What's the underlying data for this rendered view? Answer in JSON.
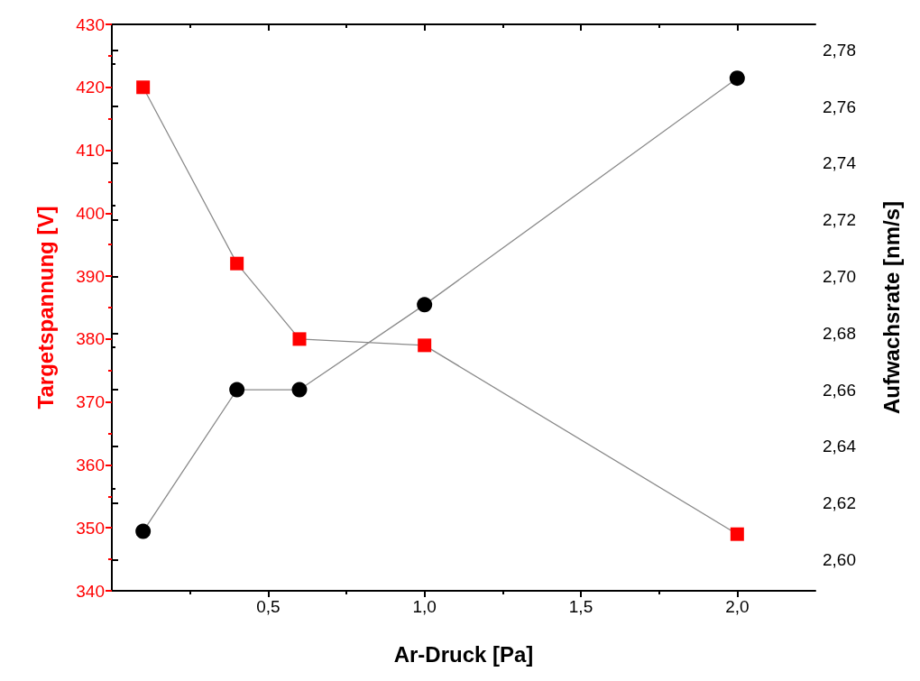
{
  "chart_data": {
    "type": "line",
    "xlabel": "Ar-Druck [Pa]",
    "ylabel": "Targetspannung [V]",
    "y2label": "Aufwachsrate [nm/s]",
    "x": [
      0.1,
      0.4,
      0.6,
      1.0,
      2.0
    ],
    "series": [
      {
        "color": "#ff0000",
        "marker": "square",
        "values": [
          420,
          392,
          380,
          379,
          349
        ]
      },
      {
        "color": "#000000",
        "marker": "circle",
        "axis": "y2",
        "values": [
          2.61,
          2.66,
          2.66,
          2.69,
          2.77
        ]
      }
    ],
    "xlim": [
      0,
      2.25
    ],
    "xticks": [
      {
        "value": 0.5,
        "label": "0,5"
      },
      {
        "value": 1.0,
        "label": "1,0"
      },
      {
        "value": 1.5,
        "label": "1,5"
      },
      {
        "value": 2.0,
        "label": "2,0"
      }
    ],
    "ylim": [
      340,
      430
    ],
    "yticks": [
      340,
      350,
      360,
      370,
      380,
      390,
      400,
      410,
      420,
      430
    ],
    "y2lim": [
      2.589,
      2.789
    ],
    "y2ticks": [
      {
        "value": 2.6,
        "label": "2,60"
      },
      {
        "value": 2.62,
        "label": "2,62"
      },
      {
        "value": 2.64,
        "label": "2,64"
      },
      {
        "value": 2.66,
        "label": "2,66"
      },
      {
        "value": 2.68,
        "label": "2,68"
      },
      {
        "value": 2.7,
        "label": "2,70"
      },
      {
        "value": 2.72,
        "label": "2,72"
      },
      {
        "value": 2.74,
        "label": "2,74"
      },
      {
        "value": 2.76,
        "label": "2,76"
      },
      {
        "value": 2.78,
        "label": "2,78"
      }
    ],
    "grid": false,
    "line_style": "solid"
  }
}
